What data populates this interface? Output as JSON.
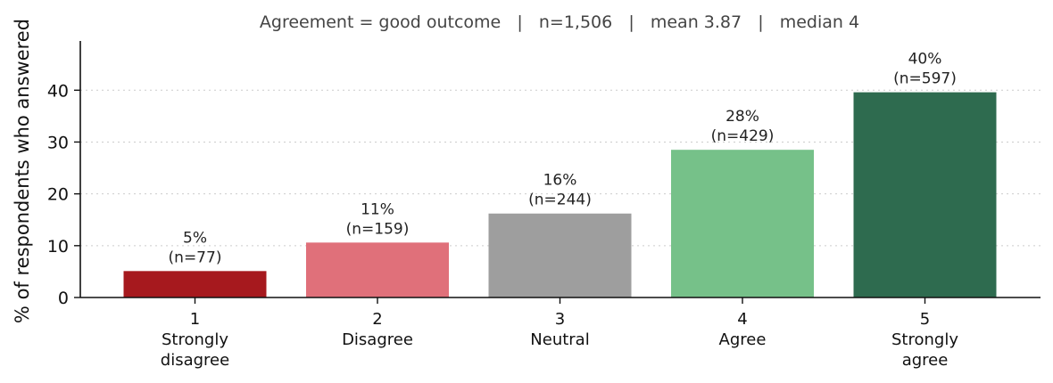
{
  "chart_data": {
    "type": "bar",
    "subtitle": "Agreement = good outcome   |   n=1,506   |   mean 3.87   |   median 4",
    "ylabel": "% of respondents who answered",
    "ylim": [
      0,
      49.5
    ],
    "yticks": [
      0,
      10,
      20,
      30,
      40
    ],
    "grid": true,
    "categories": [
      {
        "code": "1",
        "label_lines": [
          "Strongly",
          "disagree"
        ]
      },
      {
        "code": "2",
        "label_lines": [
          "Disagree"
        ]
      },
      {
        "code": "3",
        "label_lines": [
          "Neutral"
        ]
      },
      {
        "code": "4",
        "label_lines": [
          "Agree"
        ]
      },
      {
        "code": "5",
        "label_lines": [
          "Strongly",
          "agree"
        ]
      }
    ],
    "values": [
      5.1,
      10.6,
      16.2,
      28.5,
      39.6
    ],
    "data_labels": [
      {
        "pct": "5%",
        "n": "(n=77)"
      },
      {
        "pct": "11%",
        "n": "(n=159)"
      },
      {
        "pct": "16%",
        "n": "(n=244)"
      },
      {
        "pct": "28%",
        "n": "(n=429)"
      },
      {
        "pct": "40%",
        "n": "(n=597)"
      }
    ],
    "colors": [
      "#a6191e",
      "#e0707a",
      "#9e9e9e",
      "#76c189",
      "#2e6b4f"
    ]
  }
}
